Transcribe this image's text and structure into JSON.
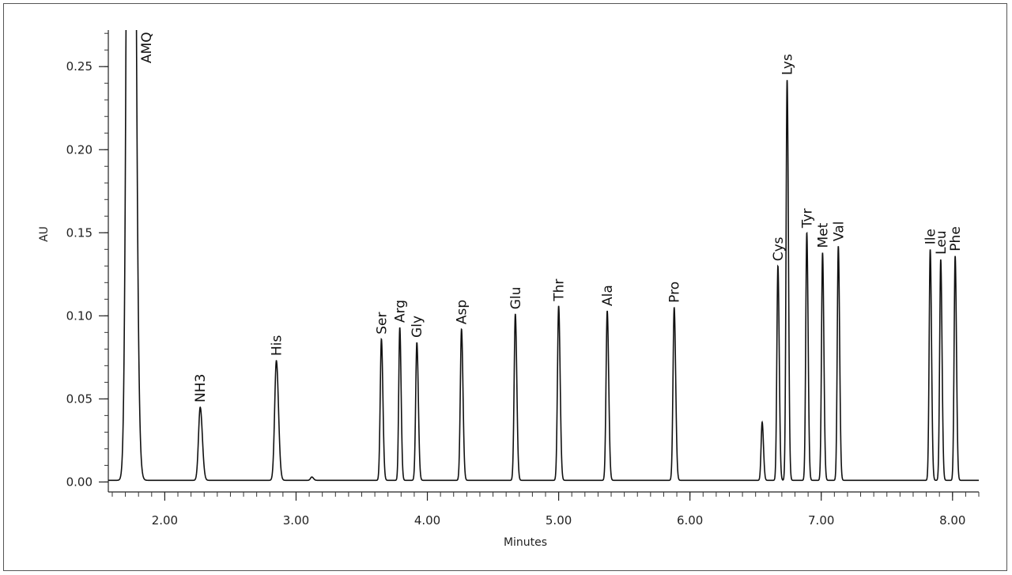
{
  "chart_data": {
    "type": "line",
    "title": "",
    "xlabel": "Minutes",
    "ylabel": "AU",
    "xlim": [
      1.57,
      8.2
    ],
    "ylim": [
      -0.006,
      0.272
    ],
    "x_ticks": [
      2.0,
      3.0,
      4.0,
      5.0,
      6.0,
      7.0,
      8.0
    ],
    "x_tick_labels": [
      "2.00",
      "3.00",
      "4.00",
      "5.00",
      "6.00",
      "7.00",
      "8.00"
    ],
    "x_minor_step": 0.1,
    "y_ticks": [
      0.0,
      0.05,
      0.1,
      0.15,
      0.2,
      0.25
    ],
    "y_tick_labels": [
      "0.00",
      "0.05",
      "0.10",
      "0.15",
      "0.20",
      "0.25"
    ],
    "y_minor_step": 0.01,
    "grid": false,
    "line_color": "#111111",
    "baseline": 0.001,
    "peaks": [
      {
        "name": "AMQ",
        "rt": 1.74,
        "height": 1.0,
        "width": 0.022,
        "label": "AMQ",
        "label_size": 17
      },
      {
        "name": "NH3",
        "rt": 2.27,
        "height": 0.044,
        "width": 0.013,
        "label": "NH3",
        "label_size": 17
      },
      {
        "name": "His",
        "rt": 2.85,
        "height": 0.072,
        "width": 0.013,
        "label": "His",
        "label_size": 17
      },
      {
        "name": "small",
        "rt": 3.12,
        "height": 0.002,
        "width": 0.01,
        "label": "",
        "label_size": 0
      },
      {
        "name": "Ser",
        "rt": 3.65,
        "height": 0.085,
        "width": 0.009,
        "label": "Ser",
        "label_size": 13
      },
      {
        "name": "Arg",
        "rt": 3.79,
        "height": 0.092,
        "width": 0.008,
        "label": "Arg",
        "label_size": 17
      },
      {
        "name": "Gly",
        "rt": 3.92,
        "height": 0.083,
        "width": 0.009,
        "label": "Gly",
        "label_size": 17
      },
      {
        "name": "Asp",
        "rt": 4.26,
        "height": 0.091,
        "width": 0.009,
        "label": "Asp",
        "label_size": 17
      },
      {
        "name": "Glu",
        "rt": 4.67,
        "height": 0.1,
        "width": 0.009,
        "label": "Glu",
        "label_size": 17
      },
      {
        "name": "Thr",
        "rt": 5.0,
        "height": 0.105,
        "width": 0.009,
        "label": "Thr",
        "label_size": 17
      },
      {
        "name": "Ala",
        "rt": 5.37,
        "height": 0.102,
        "width": 0.009,
        "label": "Ala",
        "label_size": 17
      },
      {
        "name": "Pro",
        "rt": 5.88,
        "height": 0.104,
        "width": 0.009,
        "label": "Pro",
        "label_size": 17
      },
      {
        "name": "small2",
        "rt": 6.55,
        "height": 0.035,
        "width": 0.008,
        "label": "",
        "label_size": 0
      },
      {
        "name": "Cys",
        "rt": 6.67,
        "height": 0.129,
        "width": 0.008,
        "label": "Cys",
        "label_size": 17
      },
      {
        "name": "Lys",
        "rt": 6.74,
        "height": 0.241,
        "width": 0.008,
        "label": "Lys",
        "label_size": 17
      },
      {
        "name": "Tyr",
        "rt": 6.89,
        "height": 0.149,
        "width": 0.008,
        "label": "Tyr",
        "label_size": 17
      },
      {
        "name": "Met",
        "rt": 7.01,
        "height": 0.137,
        "width": 0.008,
        "label": "Met",
        "label_size": 17
      },
      {
        "name": "Val",
        "rt": 7.13,
        "height": 0.141,
        "width": 0.008,
        "label": "Val",
        "label_size": 17
      },
      {
        "name": "Ile",
        "rt": 7.83,
        "height": 0.139,
        "width": 0.008,
        "label": "Ile",
        "label_size": 17
      },
      {
        "name": "Leu",
        "rt": 7.91,
        "height": 0.133,
        "width": 0.008,
        "label": "Leu",
        "label_size": 17
      },
      {
        "name": "Phe",
        "rt": 8.02,
        "height": 0.135,
        "width": 0.008,
        "label": "Phe",
        "label_size": 17
      }
    ]
  }
}
